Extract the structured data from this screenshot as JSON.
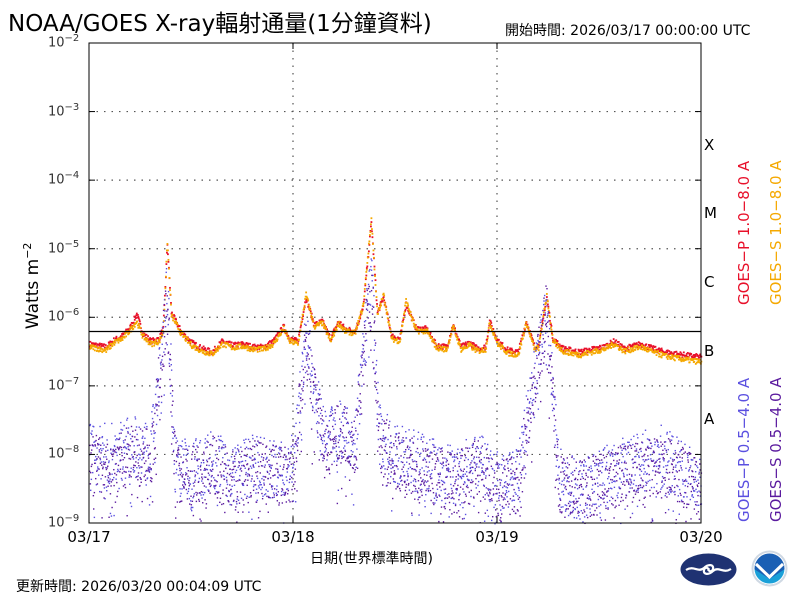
{
  "header": {
    "title": "NOAA/GOES X-ray輻射通量(1分鐘資料)",
    "start_time": "開始時間:  2026/03/17 00:00:00 UTC"
  },
  "footer": {
    "update_time": "更新時間: 2026/03/20 00:04:09 UTC"
  },
  "logos": [
    "cwa-logo",
    "noaa-logo"
  ],
  "chart_data": {
    "type": "scatter",
    "title": "NOAA/GOES X-ray輻射通量(1分鐘資料)",
    "xlabel": "日期(世界標準時間)",
    "ylabel": "Watts m^-2",
    "yscale": "log",
    "ylim": [
      1e-09,
      0.01
    ],
    "xlim": [
      0,
      3
    ],
    "x_unit": "days since 2026/03/17 00:00 UTC",
    "grid": true,
    "x_ticks": [
      {
        "value": 0,
        "label": "03/17"
      },
      {
        "value": 1,
        "label": "03/18"
      },
      {
        "value": 2,
        "label": "03/19"
      },
      {
        "value": 3,
        "label": "03/20"
      }
    ],
    "y_ticks": [
      {
        "exp": -2,
        "label": "10",
        "sup": "−2"
      },
      {
        "exp": -3,
        "label": "10",
        "sup": "−3"
      },
      {
        "exp": -4,
        "label": "10",
        "sup": "−4"
      },
      {
        "exp": -5,
        "label": "10",
        "sup": "−5"
      },
      {
        "exp": -6,
        "label": "10",
        "sup": "−6"
      },
      {
        "exp": -7,
        "label": "10",
        "sup": "−7"
      },
      {
        "exp": -8,
        "label": "10",
        "sup": "−8"
      },
      {
        "exp": -9,
        "label": "10",
        "sup": "−9"
      }
    ],
    "flare_classes": [
      {
        "label": "X",
        "y_exp": -3.5
      },
      {
        "label": "M",
        "y_exp": -4.5
      },
      {
        "label": "C",
        "y_exp": -5.5
      },
      {
        "label": "B",
        "y_exp": -6.5
      },
      {
        "label": "A",
        "y_exp": -7.5
      }
    ],
    "threshold_line": {
      "value": 6.2e-07,
      "color": "#000000"
    },
    "legend": [
      {
        "name": "GOES−P 1.0−8.0 A",
        "color": "#e8102a"
      },
      {
        "name": "GOES−S 1.0−8.0 A",
        "color": "#f5a800"
      },
      {
        "name": "GOES−P 0.5−4.0 A",
        "color": "#5a4fe0"
      },
      {
        "name": "GOES−S 0.5−4.0 A",
        "color": "#5a1a9e"
      }
    ],
    "series": [
      {
        "name": "GOES−P 1.0−8.0 A",
        "color": "#e8102a",
        "points": [
          [
            0,
            4.2e-07
          ],
          [
            0.08,
            3.8e-07
          ],
          [
            0.12,
            4.8e-07
          ],
          [
            0.16,
            5.5e-07
          ],
          [
            0.2,
            7.5e-07
          ],
          [
            0.23,
            1.15e-06
          ],
          [
            0.26,
            6e-07
          ],
          [
            0.3,
            4.6e-07
          ],
          [
            0.34,
            5e-07
          ],
          [
            0.36,
            7e-07
          ],
          [
            0.38,
            1.2e-05
          ],
          [
            0.4,
            1.2e-06
          ],
          [
            0.45,
            6.2e-07
          ],
          [
            0.5,
            4.4e-07
          ],
          [
            0.55,
            3.6e-07
          ],
          [
            0.6,
            3.2e-07
          ],
          [
            0.65,
            4.6e-07
          ],
          [
            0.7,
            4e-07
          ],
          [
            0.75,
            4.2e-07
          ],
          [
            0.8,
            3.8e-07
          ],
          [
            0.85,
            3.8e-07
          ],
          [
            0.9,
            4.6e-07
          ],
          [
            0.95,
            7.5e-07
          ],
          [
            0.98,
            5e-07
          ],
          [
            1.02,
            4.6e-07
          ],
          [
            1.06,
            2e-06
          ],
          [
            1.1,
            8e-07
          ],
          [
            1.14,
            9e-07
          ],
          [
            1.18,
            5e-07
          ],
          [
            1.22,
            9e-07
          ],
          [
            1.25,
            7e-07
          ],
          [
            1.3,
            6.5e-07
          ],
          [
            1.34,
            1.4e-06
          ],
          [
            1.38,
            2.5e-05
          ],
          [
            1.41,
            1.2e-06
          ],
          [
            1.44,
            2e-06
          ],
          [
            1.48,
            5.5e-07
          ],
          [
            1.52,
            5e-07
          ],
          [
            1.55,
            1.6e-06
          ],
          [
            1.6,
            7e-07
          ],
          [
            1.65,
            7e-07
          ],
          [
            1.7,
            4e-07
          ],
          [
            1.75,
            3.8e-07
          ],
          [
            1.78,
            8e-07
          ],
          [
            1.82,
            3.8e-07
          ],
          [
            1.86,
            4.4e-07
          ],
          [
            1.9,
            3.6e-07
          ],
          [
            1.94,
            3.8e-07
          ],
          [
            1.96,
            9e-07
          ],
          [
            2.0,
            4.6e-07
          ],
          [
            2.05,
            3.4e-07
          ],
          [
            2.1,
            3.2e-07
          ],
          [
            2.14,
            9e-07
          ],
          [
            2.18,
            3.8e-07
          ],
          [
            2.2,
            4e-07
          ],
          [
            2.24,
            2e-06
          ],
          [
            2.27,
            5e-07
          ],
          [
            2.32,
            3.6e-07
          ],
          [
            2.4,
            3.2e-07
          ],
          [
            2.46,
            3.5e-07
          ],
          [
            2.52,
            3.8e-07
          ],
          [
            2.57,
            4.6e-07
          ],
          [
            2.62,
            3.6e-07
          ],
          [
            2.7,
            4.2e-07
          ],
          [
            2.76,
            3.6e-07
          ],
          [
            2.82,
            3.2e-07
          ],
          [
            2.88,
            3e-07
          ],
          [
            2.95,
            2.8e-07
          ],
          [
            3.0,
            2.7e-07
          ]
        ]
      },
      {
        "name": "GOES−S 1.0−8.0 A",
        "color": "#f5a800",
        "points": [
          [
            0,
            3.8e-07
          ],
          [
            0.08,
            3.4e-07
          ],
          [
            0.12,
            4.4e-07
          ],
          [
            0.16,
            5e-07
          ],
          [
            0.2,
            6.8e-07
          ],
          [
            0.23,
            9e-07
          ],
          [
            0.26,
            5.4e-07
          ],
          [
            0.3,
            4.2e-07
          ],
          [
            0.34,
            4.6e-07
          ],
          [
            0.36,
            6.4e-07
          ],
          [
            0.38,
            1.3e-05
          ],
          [
            0.4,
            1.1e-06
          ],
          [
            0.45,
            5.8e-07
          ],
          [
            0.5,
            4e-07
          ],
          [
            0.55,
            3.3e-07
          ],
          [
            0.6,
            3e-07
          ],
          [
            0.65,
            4.2e-07
          ],
          [
            0.7,
            3.7e-07
          ],
          [
            0.75,
            3.9e-07
          ],
          [
            0.8,
            3.5e-07
          ],
          [
            0.85,
            3.5e-07
          ],
          [
            0.9,
            4.2e-07
          ],
          [
            0.95,
            7e-07
          ],
          [
            0.98,
            4.6e-07
          ],
          [
            1.02,
            4.2e-07
          ],
          [
            1.06,
            2.2e-06
          ],
          [
            1.1,
            7.5e-07
          ],
          [
            1.14,
            8.5e-07
          ],
          [
            1.18,
            4.6e-07
          ],
          [
            1.22,
            8.5e-07
          ],
          [
            1.25,
            6.5e-07
          ],
          [
            1.3,
            6e-07
          ],
          [
            1.34,
            1.5e-06
          ],
          [
            1.38,
            2.8e-05
          ],
          [
            1.41,
            1.1e-06
          ],
          [
            1.44,
            2.2e-06
          ],
          [
            1.48,
            5e-07
          ],
          [
            1.52,
            4.6e-07
          ],
          [
            1.55,
            1.8e-06
          ],
          [
            1.6,
            6.5e-07
          ],
          [
            1.65,
            6.5e-07
          ],
          [
            1.7,
            3.7e-07
          ],
          [
            1.75,
            3.5e-07
          ],
          [
            1.78,
            7.5e-07
          ],
          [
            1.82,
            3.5e-07
          ],
          [
            1.86,
            4e-07
          ],
          [
            1.9,
            3.3e-07
          ],
          [
            1.94,
            3.5e-07
          ],
          [
            1.96,
            8.5e-07
          ],
          [
            2.0,
            4.2e-07
          ],
          [
            2.05,
            3.1e-07
          ],
          [
            2.1,
            2.9e-07
          ],
          [
            2.14,
            8.5e-07
          ],
          [
            2.18,
            3.5e-07
          ],
          [
            2.2,
            3.7e-07
          ],
          [
            2.24,
            2.2e-06
          ],
          [
            2.27,
            4.6e-07
          ],
          [
            2.32,
            3.3e-07
          ],
          [
            2.4,
            2.9e-07
          ],
          [
            2.46,
            3.2e-07
          ],
          [
            2.52,
            3.5e-07
          ],
          [
            2.57,
            4.2e-07
          ],
          [
            2.62,
            3.3e-07
          ],
          [
            2.7,
            3.8e-07
          ],
          [
            2.76,
            3.2e-07
          ],
          [
            2.82,
            2.8e-07
          ],
          [
            2.88,
            2.6e-07
          ],
          [
            2.95,
            2.4e-07
          ],
          [
            3.0,
            2.3e-07
          ]
        ]
      },
      {
        "name": "GOES−P 0.5−4.0 A",
        "color": "#5a4fe0",
        "points": [
          [
            0,
            1.2e-08
          ],
          [
            0.1,
            1e-08
          ],
          [
            0.2,
            1.4e-08
          ],
          [
            0.3,
            1.1e-08
          ],
          [
            0.38,
            2.5e-06
          ],
          [
            0.42,
            7e-09
          ],
          [
            0.5,
            6e-09
          ],
          [
            0.6,
            9e-09
          ],
          [
            0.7,
            5e-09
          ],
          [
            0.8,
            7e-09
          ],
          [
            0.9,
            6e-09
          ],
          [
            1.0,
            8e-09
          ],
          [
            1.06,
            5e-07
          ],
          [
            1.15,
            1.5e-08
          ],
          [
            1.25,
            3e-08
          ],
          [
            1.3,
            1.5e-08
          ],
          [
            1.38,
            5e-06
          ],
          [
            1.42,
            2e-08
          ],
          [
            1.5,
            1e-08
          ],
          [
            1.6,
            8e-09
          ],
          [
            1.7,
            6e-09
          ],
          [
            1.8,
            5e-09
          ],
          [
            1.9,
            8e-09
          ],
          [
            2.0,
            4e-09
          ],
          [
            2.1,
            5e-09
          ],
          [
            2.24,
            1.5e-06
          ],
          [
            2.3,
            5e-09
          ],
          [
            2.4,
            3e-09
          ],
          [
            2.5,
            5e-09
          ],
          [
            2.6,
            6e-09
          ],
          [
            2.7,
            8e-09
          ],
          [
            2.8,
            1e-08
          ],
          [
            2.9,
            6e-09
          ],
          [
            3.0,
            4e-09
          ]
        ]
      },
      {
        "name": "GOES−S 0.5−4.0 A",
        "color": "#5a1a9e",
        "points": [
          [
            0,
            8e-09
          ],
          [
            0.1,
            6e-09
          ],
          [
            0.2,
            1.1e-08
          ],
          [
            0.3,
            8e-09
          ],
          [
            0.38,
            1.5e-06
          ],
          [
            0.42,
            6e-09
          ],
          [
            0.5,
            5e-09
          ],
          [
            0.6,
            7e-09
          ],
          [
            0.7,
            4e-09
          ],
          [
            0.8,
            6e-09
          ],
          [
            0.9,
            5e-09
          ],
          [
            1.0,
            6e-09
          ],
          [
            1.06,
            4e-07
          ],
          [
            1.15,
            1.2e-08
          ],
          [
            1.25,
            2.5e-08
          ],
          [
            1.3,
            1.2e-08
          ],
          [
            1.38,
            4e-06
          ],
          [
            1.42,
            1.6e-08
          ],
          [
            1.5,
            8e-09
          ],
          [
            1.6,
            6e-09
          ],
          [
            1.7,
            5e-09
          ],
          [
            1.8,
            4e-09
          ],
          [
            1.9,
            6e-09
          ],
          [
            2.0,
            3e-09
          ],
          [
            2.1,
            4e-09
          ],
          [
            2.24,
            1.2e-06
          ],
          [
            2.3,
            4e-09
          ],
          [
            2.4,
            3e-09
          ],
          [
            2.5,
            4e-09
          ],
          [
            2.6,
            5e-09
          ],
          [
            2.7,
            6e-09
          ],
          [
            2.8,
            8e-09
          ],
          [
            2.9,
            5e-09
          ],
          [
            3.0,
            3e-09
          ]
        ]
      }
    ]
  }
}
